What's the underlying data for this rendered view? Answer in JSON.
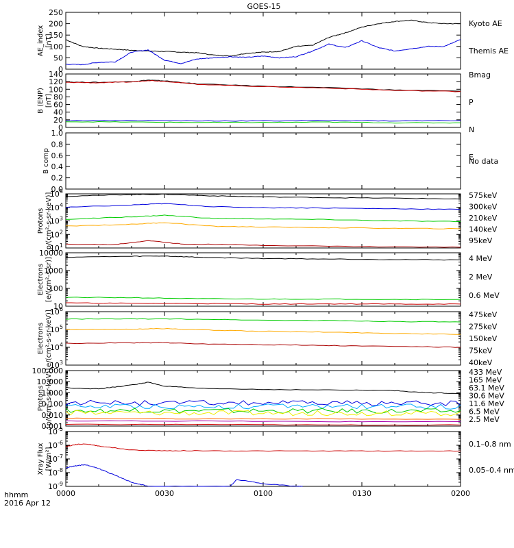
{
  "title": "GOES-15",
  "footer": {
    "left_top": "hhmm",
    "left_bottom": "2016 Apr 12"
  },
  "x_ticks": [
    "0000",
    "0030",
    "0100",
    "0130",
    "0200"
  ],
  "colors": {
    "black": "#000000",
    "blue": "#0000dd",
    "red": "#cc0000",
    "green": "#00cc00",
    "orange": "#ffaa00",
    "cyan": "#00aaff",
    "yellow": "#eeee00",
    "purple": "#aa00aa",
    "darkred": "#aa0000"
  },
  "chart_data": [
    {
      "id": "ae",
      "type": "line",
      "ylabel": "AE_index",
      "yunit": "[nT]",
      "ylim": [
        0,
        250
      ],
      "scale": "linear",
      "yticks": [
        0,
        50,
        100,
        150,
        200,
        250
      ],
      "legend": [
        {
          "label": "Kyoto AE",
          "color": "#0000dd"
        },
        {
          "label": "Themis AE",
          "color": "#000000"
        }
      ],
      "series": [
        {
          "color": "#000000",
          "x": [
            0,
            5,
            10,
            15,
            20,
            25,
            30,
            35,
            40,
            45,
            50,
            55,
            60,
            65,
            70,
            75,
            80,
            85,
            90,
            95,
            100,
            105,
            110,
            115,
            120
          ],
          "y": [
            130,
            100,
            92,
            88,
            83,
            80,
            78,
            75,
            72,
            62,
            58,
            70,
            75,
            78,
            100,
            105,
            140,
            160,
            185,
            200,
            210,
            215,
            205,
            200,
            200
          ]
        },
        {
          "color": "#0000dd",
          "x": [
            0,
            5,
            10,
            15,
            20,
            25,
            30,
            35,
            40,
            45,
            50,
            55,
            60,
            65,
            70,
            75,
            80,
            85,
            90,
            95,
            100,
            105,
            110,
            115,
            120
          ],
          "y": [
            22,
            20,
            30,
            32,
            75,
            85,
            40,
            25,
            45,
            50,
            55,
            52,
            58,
            50,
            55,
            80,
            110,
            95,
            125,
            95,
            80,
            90,
            100,
            100,
            130
          ]
        }
      ]
    },
    {
      "id": "b",
      "type": "line",
      "ylabel": "B (ENP)",
      "yunit": "[nT]",
      "ylim": [
        0,
        140
      ],
      "scale": "linear",
      "yticks": [
        0,
        20,
        40,
        60,
        80,
        100,
        120,
        140
      ],
      "legend": [
        {
          "label": "Bmag",
          "color": "#000000"
        },
        {
          "label": "P",
          "color": "#cc0000"
        },
        {
          "label": "N",
          "color": "#00cc00"
        },
        {
          "label": "E",
          "color": "#0000dd"
        }
      ],
      "series": [
        {
          "color": "#000000",
          "x": [
            0,
            10,
            20,
            25,
            30,
            40,
            60,
            80,
            100,
            120
          ],
          "y": [
            119,
            118,
            120,
            124,
            122,
            114,
            108,
            104,
            98,
            95
          ]
        },
        {
          "color": "#cc0000",
          "x": [
            0,
            10,
            20,
            25,
            30,
            40,
            60,
            80,
            100,
            120
          ],
          "y": [
            118,
            117,
            119,
            123,
            121,
            113,
            107,
            103,
            97,
            94
          ]
        },
        {
          "color": "#00cc00",
          "x": [
            0,
            20,
            40,
            60,
            80,
            100,
            120
          ],
          "y": [
            15,
            14,
            13,
            13,
            14,
            12,
            12
          ]
        },
        {
          "color": "#0000dd",
          "x": [
            0,
            20,
            40,
            60,
            80,
            100,
            120
          ],
          "y": [
            18,
            18,
            17,
            17,
            18,
            17,
            18
          ]
        }
      ]
    },
    {
      "id": "bcomp",
      "type": "line",
      "ylabel": "B comp",
      "yunit": "",
      "ylim": [
        0,
        1
      ],
      "scale": "linear",
      "yticks": [
        0.0,
        0.2,
        0.4,
        0.6,
        0.8,
        1.0
      ],
      "tick_format": "1",
      "legend": [
        {
          "label": "No data",
          "color": "#000000"
        }
      ],
      "series": []
    },
    {
      "id": "protons1",
      "type": "line",
      "ylabel": "Protons",
      "yunit": "p/(cm²-s-sr-keV)]",
      "ylim": [
        1,
        5
      ],
      "scale": "log",
      "yticks_pow": [
        1,
        2,
        3,
        4,
        5
      ],
      "legend": [
        {
          "label": "575keV",
          "color": "#aa0000"
        },
        {
          "label": "300keV",
          "color": "#ffaa00"
        },
        {
          "label": "210keV",
          "color": "#00cc00"
        },
        {
          "label": "140keV",
          "color": "#0000dd"
        },
        {
          "label": "95keV",
          "color": "#000000"
        }
      ],
      "series": [
        {
          "color": "#000000",
          "x": [
            0,
            20,
            30,
            45,
            60,
            80,
            100,
            120
          ],
          "y": [
            4.82,
            4.95,
            4.97,
            4.85,
            4.78,
            4.72,
            4.68,
            4.62
          ]
        },
        {
          "color": "#0000dd",
          "x": [
            0,
            20,
            30,
            45,
            60,
            80,
            100,
            120
          ],
          "y": [
            4.0,
            4.18,
            4.28,
            4.05,
            3.98,
            3.95,
            3.9,
            3.85
          ]
        },
        {
          "color": "#00cc00",
          "x": [
            0,
            20,
            30,
            45,
            60,
            80,
            100,
            120
          ],
          "y": [
            3.12,
            3.3,
            3.42,
            3.18,
            3.15,
            3.1,
            3.0,
            2.95
          ]
        },
        {
          "color": "#ffaa00",
          "x": [
            0,
            20,
            30,
            45,
            60,
            80,
            100,
            120
          ],
          "y": [
            2.62,
            2.75,
            2.88,
            2.6,
            2.55,
            2.5,
            2.45,
            2.42
          ]
        },
        {
          "color": "#aa0000",
          "x": [
            0,
            15,
            25,
            35,
            60,
            90,
            120
          ],
          "y": [
            1.28,
            1.25,
            1.55,
            1.3,
            1.2,
            1.1,
            1.05
          ]
        }
      ]
    },
    {
      "id": "electrons1",
      "type": "line",
      "ylabel": "Electrons",
      "yunit": "[e/(cm²-s-sr)]",
      "ylim": [
        1,
        4
      ],
      "scale": "log",
      "yticks": [
        10,
        100,
        1000,
        10000
      ],
      "legend": [
        {
          "label": "4 MeV",
          "color": "#cc0000"
        },
        {
          "label": "2 MeV",
          "color": "#00cc00"
        },
        {
          "label": "0.6 MeV",
          "color": "#000000"
        }
      ],
      "series": [
        {
          "color": "#000000",
          "x": [
            0,
            20,
            30,
            40,
            60,
            80,
            100,
            120
          ],
          "y": [
            3.75,
            3.8,
            3.82,
            3.75,
            3.68,
            3.65,
            3.62,
            3.6
          ]
        },
        {
          "color": "#00cc00",
          "x": [
            0,
            20,
            40,
            60,
            80,
            100,
            120
          ],
          "y": [
            1.5,
            1.48,
            1.42,
            1.4,
            1.4,
            1.38,
            1.38
          ]
        },
        {
          "color": "#cc0000",
          "x": [
            0,
            20,
            40,
            60,
            80,
            100,
            120
          ],
          "y": [
            1.18,
            1.16,
            1.15,
            1.12,
            1.13,
            1.12,
            1.12
          ]
        }
      ]
    },
    {
      "id": "electrons2",
      "type": "line",
      "ylabel": "Electrons",
      "yunit": "e/(cm²-s-sr-keV)]",
      "ylim": [
        3,
        6
      ],
      "scale": "log",
      "yticks_pow": [
        3,
        4,
        5,
        6
      ],
      "legend": [
        {
          "label": "475keV",
          "color": "#aa0000"
        },
        {
          "label": "275keV",
          "color": "#ffaa00"
        },
        {
          "label": "150keV",
          "color": "#00cc00"
        },
        {
          "label": "75keV",
          "color": "#0000dd"
        },
        {
          "label": "40keV",
          "color": "#000000"
        }
      ],
      "series": [
        {
          "color": "#00cc00",
          "x": [
            0,
            20,
            40,
            60,
            80,
            100,
            120
          ],
          "y": [
            5.58,
            5.6,
            5.58,
            5.52,
            5.5,
            5.45,
            5.42
          ]
        },
        {
          "color": "#ffaa00",
          "x": [
            0,
            20,
            30,
            40,
            60,
            80,
            100,
            120
          ],
          "y": [
            4.98,
            5.02,
            5.05,
            4.98,
            4.9,
            4.85,
            4.78,
            4.72
          ]
        },
        {
          "color": "#aa0000",
          "x": [
            0,
            20,
            30,
            40,
            60,
            80,
            100,
            120
          ],
          "y": [
            4.22,
            4.25,
            4.26,
            4.2,
            4.15,
            4.1,
            4.05,
            4.0
          ]
        }
      ]
    },
    {
      "id": "protons2",
      "type": "line",
      "ylabel": "Protons",
      "yunit": "[p/(cm²-s-sr-keV)]",
      "ylim": [
        -3,
        2
      ],
      "scale": "log",
      "yticks": [
        0.001,
        0.01,
        0.1,
        1.0,
        10.0,
        100.0
      ],
      "legend": [
        {
          "label": "433 MeV",
          "color": "#cc0000"
        },
        {
          "label": "165 MeV",
          "color": "#ff6600"
        },
        {
          "label": "63.1 MeV",
          "color": "#eeee00"
        },
        {
          "label": "30.6 MeV",
          "color": "#00cc00"
        },
        {
          "label": "11.6 MeV",
          "color": "#00aaff"
        },
        {
          "label": "6.5 MeV",
          "color": "#aa00aa"
        },
        {
          "label": "2.5 MeV",
          "color": "#000000"
        }
      ],
      "series": [
        {
          "color": "#000000",
          "x": [
            0,
            10,
            20,
            25,
            30,
            40,
            60,
            80,
            100,
            110,
            120
          ],
          "y": [
            0.45,
            0.35,
            0.7,
            0.95,
            0.6,
            0.4,
            0.3,
            0.25,
            0.2,
            0.0,
            -0.05
          ]
        },
        {
          "color": "#0000dd",
          "noisy": true,
          "x": [
            0,
            120
          ],
          "y": [
            -0.9,
            -0.95
          ]
        },
        {
          "color": "#00aaff",
          "noisy": true,
          "x": [
            0,
            120
          ],
          "y": [
            -1.2,
            -1.25
          ]
        },
        {
          "color": "#00cc00",
          "noisy": true,
          "x": [
            0,
            120
          ],
          "y": [
            -1.6,
            -1.65
          ]
        },
        {
          "color": "#eeee00",
          "noisy": true,
          "x": [
            0,
            120
          ],
          "y": [
            -1.8,
            -1.85
          ]
        },
        {
          "color": "#ff6600",
          "x": [
            0,
            40,
            80,
            120
          ],
          "y": [
            -2.3,
            -2.35,
            -2.35,
            -2.4
          ]
        },
        {
          "color": "#aa00aa",
          "x": [
            0,
            40,
            80,
            120
          ],
          "y": [
            -2.55,
            -2.55,
            -2.6,
            -2.6
          ]
        },
        {
          "color": "#cc0000",
          "x": [
            0,
            40,
            80,
            120
          ],
          "y": [
            -2.85,
            -2.85,
            -2.9,
            -2.9
          ]
        }
      ]
    },
    {
      "id": "xray",
      "type": "line",
      "ylabel": "Xray Flux",
      "yunit": "[W/m²]",
      "ylim": [
        -9,
        -5
      ],
      "scale": "log",
      "yticks_pow": [
        -9,
        -8,
        -7,
        -6,
        -5
      ],
      "legend": [
        {
          "label": "0.1–0.8 nm",
          "color": "#cc0000"
        },
        {
          "label": "0.05–0.4 nm",
          "color": "#0000dd"
        }
      ],
      "series": [
        {
          "color": "#cc0000",
          "x": [
            0,
            3,
            6,
            10,
            20,
            30,
            40,
            60,
            80,
            100,
            120
          ],
          "y": [
            -6.1,
            -5.95,
            -5.9,
            -6.05,
            -6.35,
            -6.4,
            -6.4,
            -6.42,
            -6.42,
            -6.42,
            -6.42
          ]
        },
        {
          "color": "#0000dd",
          "x": [
            0,
            3,
            6,
            10,
            15,
            20,
            25,
            50,
            52,
            60,
            70,
            72
          ],
          "y": [
            -7.65,
            -7.5,
            -7.42,
            -7.7,
            -8.2,
            -8.7,
            -9.0,
            -9.0,
            -8.5,
            -8.8,
            -9.0,
            -9.0
          ]
        }
      ]
    }
  ]
}
